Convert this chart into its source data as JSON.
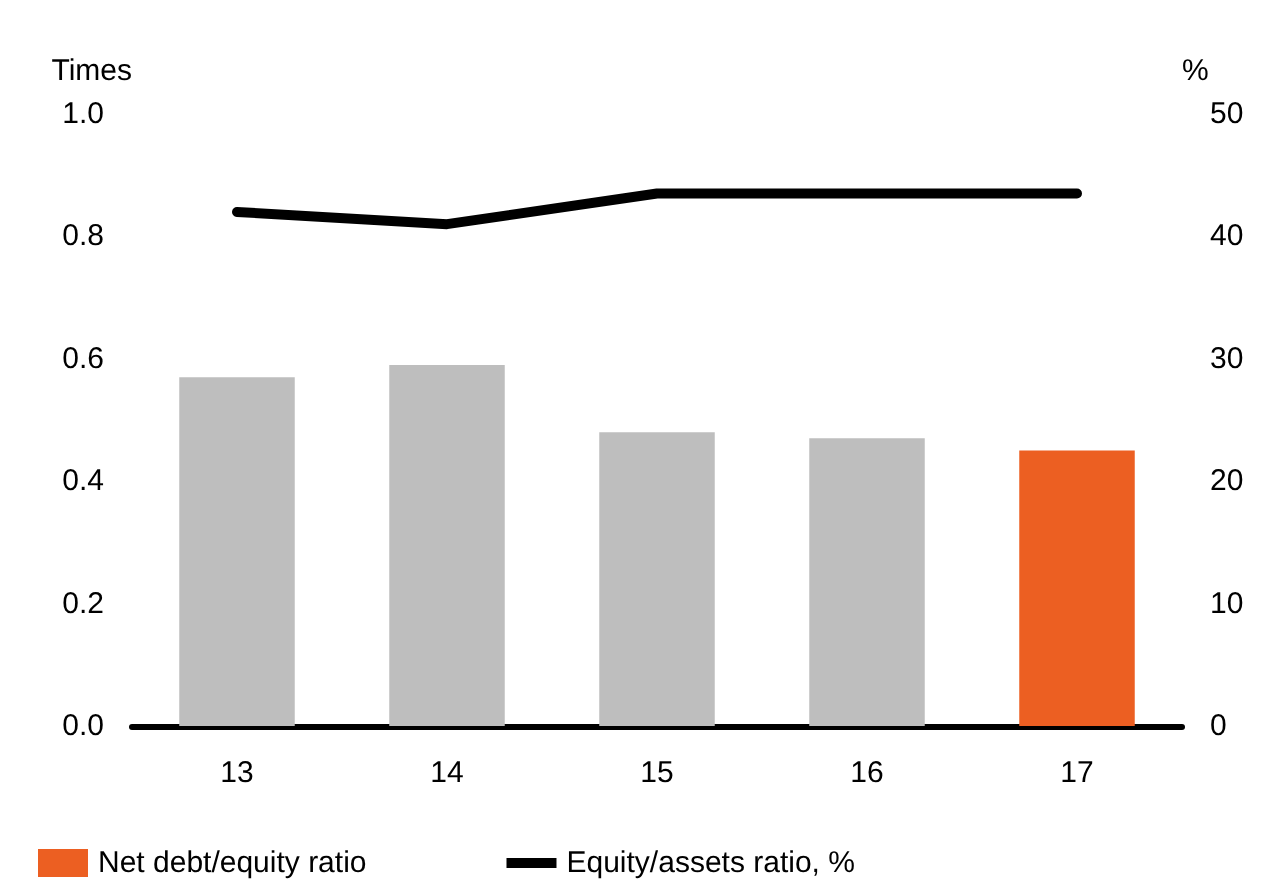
{
  "chart_data": {
    "type": "bar",
    "ylabel": "Times",
    "y2label": "%",
    "categories": [
      "13",
      "14",
      "15",
      "16",
      "17"
    ],
    "series": [
      {
        "name": "Net debt/equity ratio",
        "color": "#ec5f22",
        "colors": [
          "#bebebe",
          "#bebebe",
          "#bebebe",
          "#bebebe",
          "#ec5f22"
        ],
        "values": [
          0.57,
          0.59,
          0.48,
          0.47,
          0.45
        ]
      },
      {
        "name": "Equity/assets ratio, %",
        "type": "line",
        "axis": "y2",
        "color": "#000000",
        "values": [
          42,
          41,
          43.5,
          43.5,
          43.5
        ]
      }
    ],
    "ylim": [
      0,
      1.0
    ],
    "yticks": [
      {
        "value": 0,
        "label": "0.0"
      },
      {
        "value": 0.2,
        "label": "0.2"
      },
      {
        "value": 0.4,
        "label": "0.4"
      },
      {
        "value": 0.6,
        "label": "0.6"
      },
      {
        "value": 0.8,
        "label": "0.8"
      },
      {
        "value": 1.0,
        "label": "1.0"
      }
    ],
    "y2lim": [
      0,
      50
    ],
    "y2ticks": [
      0,
      10,
      20,
      30,
      40,
      50
    ],
    "grid": false,
    "legend": "bottom left",
    "marker": "none",
    "line_style": "solid"
  }
}
